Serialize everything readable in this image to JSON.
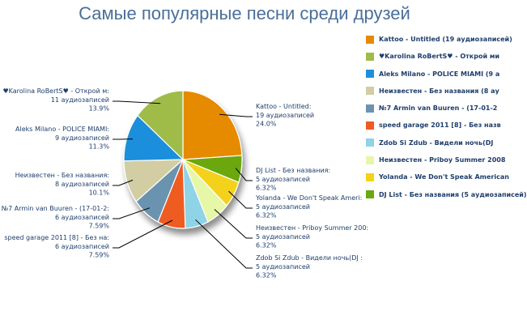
{
  "chart_data": {
    "type": "pie",
    "title": "Самые популярные песни среди друзей",
    "unit_label": "аудиозаписей",
    "slices": [
      {
        "name": "Kattoo - Untitled (19 аудиозаписей)",
        "callout_name": "Kattoo - Untitled:",
        "value": 19,
        "percent": "24.0%",
        "color": "#e68a00"
      },
      {
        "name": "DJ List - Без названия (5 аудиозаписей)",
        "callout_name": "DJ List - Без названия:",
        "value": 5,
        "percent": "6.32%",
        "color": "#6aa80e"
      },
      {
        "name": "Yolanda - We Don't Speak American",
        "callout_name": "Yolanda - We Don't Speak Ameri:",
        "value": 5,
        "percent": "6.32%",
        "color": "#f4d21a"
      },
      {
        "name": "Неизвестен - Priboy Summer 2008",
        "callout_name": "Неизвестен - Priboy Summer 200:",
        "value": 5,
        "percent": "6.32%",
        "color": "#e6f7a8"
      },
      {
        "name": "Zdob Si Zdub - Видели ночь(DJ",
        "callout_name": "Zdob Si Zdub - Видели ночь(DJ :",
        "value": 5,
        "percent": "6.32%",
        "color": "#8fd3e6"
      },
      {
        "name": "speed garage 2011 [8] - Без назв",
        "callout_name": "speed garage 2011 [8] - Без на:",
        "value": 6,
        "percent": "7.59%",
        "color": "#ee5b21"
      },
      {
        "name": "№7 Armin van Buuren - (17-01-2",
        "callout_name": "№7 Armin van Buuren - (17-01-2:",
        "value": 6,
        "percent": "7.59%",
        "color": "#6b93af"
      },
      {
        "name": "Неизвестен - Без названия (8 ау",
        "callout_name": "Неизвестен - Без названия:",
        "value": 8,
        "percent": "10.1%",
        "color": "#d3cda3"
      },
      {
        "name": "Aleks Milano - POLICE MIAMI (9 а",
        "callout_name": "Aleks Milano - POLICE MIAMI:",
        "value": 9,
        "percent": "11.3%",
        "color": "#1c8fdc"
      },
      {
        "name": "♥Karolina RoBertS♥ - Открой ми",
        "callout_name": "♥Karolina RoBertS♥ - Открой м:",
        "value": 11,
        "percent": "13.9%",
        "color": "#9fbc48"
      }
    ],
    "legend": [
      {
        "label": "Kattoo - Untitled (19 аудиозаписей)",
        "color": "#e68a00"
      },
      {
        "label": "♥Karolina RoBertS♥ - Открой ми",
        "color": "#9fbc48"
      },
      {
        "label": "Aleks Milano - POLICE MIAMI (9 а",
        "color": "#1c8fdc"
      },
      {
        "label": "Неизвестен - Без названия (8 ау",
        "color": "#d3cda3"
      },
      {
        "label": "№7 Armin van Buuren - (17-01-2",
        "color": "#6b93af"
      },
      {
        "label": "speed garage 2011 [8] - Без назв",
        "color": "#ee5b21"
      },
      {
        "label": "Zdob Si Zdub - Видели ночь(DJ",
        "color": "#8fd3e6"
      },
      {
        "label": "Неизвестен - Priboy Summer 2008",
        "color": "#e6f7a8"
      },
      {
        "label": "Yolanda - We Don't Speak American",
        "color": "#f4d21a"
      },
      {
        "label": "DJ List - Без названия (5 аудиозаписей)",
        "color": "#6aa80e"
      }
    ],
    "legend_position": "right"
  }
}
